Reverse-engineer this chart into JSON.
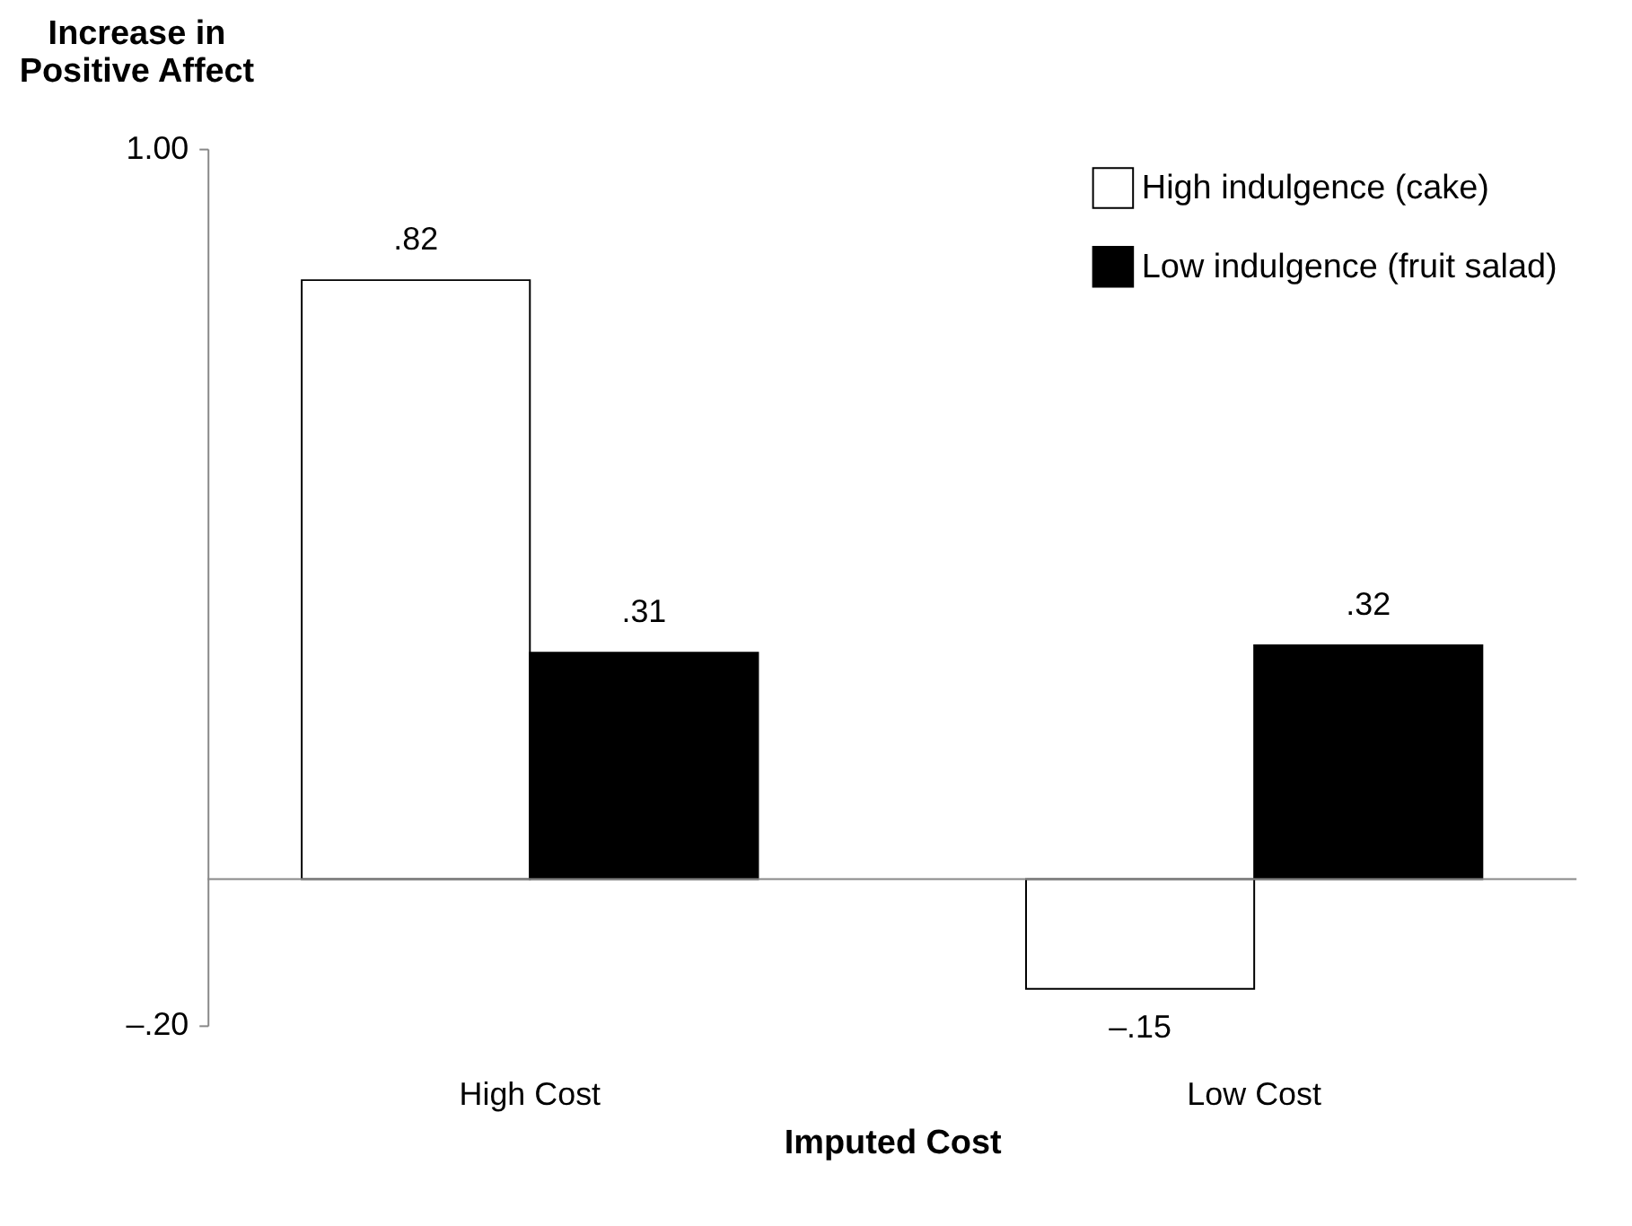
{
  "chart_data": {
    "type": "bar",
    "xlabel": "Imputed Cost",
    "ylabel": "Increase in Positive Affect",
    "categories": [
      "High Cost",
      "Low Cost"
    ],
    "series": [
      {
        "name": "High indulgence (cake)",
        "color": "#ffffff",
        "values": [
          0.82,
          -0.15
        ],
        "value_labels": [
          ".82",
          "–.15"
        ]
      },
      {
        "name": "Low indulgence (fruit salad)",
        "color": "#000000",
        "values": [
          0.31,
          0.32
        ],
        "value_labels": [
          ".31",
          ".32"
        ]
      }
    ],
    "ylim": [
      -0.2,
      1.0
    ],
    "yticks": [
      {
        "value": -0.2,
        "label": "–.20"
      },
      {
        "value": 1.0,
        "label": "1.00"
      }
    ],
    "ref_lines": [
      {
        "axis": "y",
        "value": 0
      }
    ],
    "grid": false,
    "legend": "top right"
  }
}
